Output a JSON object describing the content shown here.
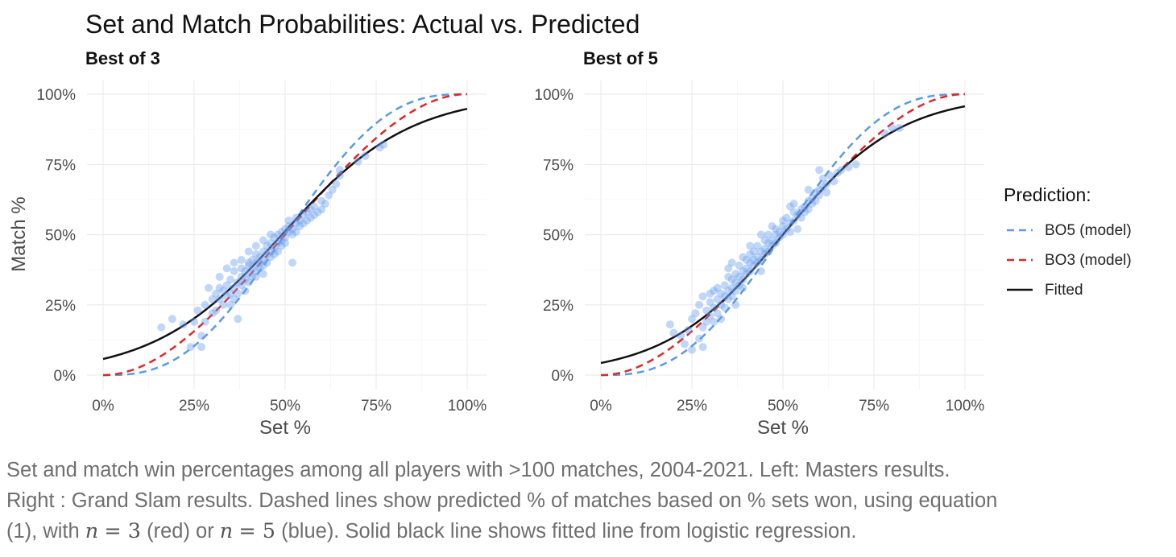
{
  "chart_data": {
    "type": "scatter",
    "title": "Set and Match Probabilities: Actual vs. Predicted",
    "xlabel": "Set %",
    "ylabel": "Match %",
    "xlim": [
      0,
      1
    ],
    "ylim": [
      0,
      1
    ],
    "x_ticks": [
      "0%",
      "25%",
      "50%",
      "75%",
      "100%"
    ],
    "y_ticks": [
      "0%",
      "25%",
      "50%",
      "75%",
      "100%"
    ],
    "grid": true,
    "legend": {
      "title": "Prediction:",
      "position": "right",
      "entries": [
        {
          "label": "BO5 (model)",
          "color": "#5b9ae6",
          "style": "dashed"
        },
        {
          "label": "BO3 (model)",
          "color": "#e0262a",
          "style": "dashed"
        },
        {
          "label": "Fitted",
          "color": "#111111",
          "style": "solid"
        }
      ]
    },
    "point_color": "#6b9ff0",
    "panels": [
      {
        "subtitle": "Best of 3",
        "fitted_logistic": {
          "intercept": -2.8,
          "slope": 5.7
        },
        "points": [
          [
            0.16,
            0.17
          ],
          [
            0.19,
            0.2
          ],
          [
            0.22,
            0.18
          ],
          [
            0.24,
            0.1
          ],
          [
            0.25,
            0.19
          ],
          [
            0.26,
            0.23
          ],
          [
            0.27,
            0.1
          ],
          [
            0.27,
            0.14
          ],
          [
            0.28,
            0.25
          ],
          [
            0.28,
            0.19
          ],
          [
            0.29,
            0.31
          ],
          [
            0.3,
            0.22
          ],
          [
            0.3,
            0.27
          ],
          [
            0.31,
            0.29
          ],
          [
            0.31,
            0.23
          ],
          [
            0.32,
            0.31
          ],
          [
            0.32,
            0.27
          ],
          [
            0.33,
            0.3
          ],
          [
            0.33,
            0.25
          ],
          [
            0.34,
            0.32
          ],
          [
            0.34,
            0.28
          ],
          [
            0.35,
            0.29
          ],
          [
            0.35,
            0.34
          ],
          [
            0.35,
            0.25
          ],
          [
            0.36,
            0.31
          ],
          [
            0.36,
            0.27
          ],
          [
            0.36,
            0.37
          ],
          [
            0.37,
            0.33
          ],
          [
            0.37,
            0.29
          ],
          [
            0.37,
            0.2
          ],
          [
            0.38,
            0.35
          ],
          [
            0.38,
            0.32
          ],
          [
            0.38,
            0.38
          ],
          [
            0.39,
            0.34
          ],
          [
            0.39,
            0.3
          ],
          [
            0.39,
            0.37
          ],
          [
            0.4,
            0.36
          ],
          [
            0.4,
            0.33
          ],
          [
            0.4,
            0.4
          ],
          [
            0.4,
            0.39
          ],
          [
            0.41,
            0.38
          ],
          [
            0.41,
            0.35
          ],
          [
            0.41,
            0.41
          ],
          [
            0.42,
            0.4
          ],
          [
            0.42,
            0.37
          ],
          [
            0.42,
            0.43
          ],
          [
            0.42,
            0.35
          ],
          [
            0.43,
            0.4
          ],
          [
            0.43,
            0.42
          ],
          [
            0.43,
            0.38
          ],
          [
            0.44,
            0.41
          ],
          [
            0.44,
            0.44
          ],
          [
            0.44,
            0.39
          ],
          [
            0.44,
            0.36
          ],
          [
            0.45,
            0.43
          ],
          [
            0.45,
            0.4
          ],
          [
            0.45,
            0.46
          ],
          [
            0.46,
            0.44
          ],
          [
            0.46,
            0.42
          ],
          [
            0.46,
            0.47
          ],
          [
            0.47,
            0.45
          ],
          [
            0.47,
            0.43
          ],
          [
            0.47,
            0.49
          ],
          [
            0.48,
            0.47
          ],
          [
            0.48,
            0.44
          ],
          [
            0.48,
            0.5
          ],
          [
            0.49,
            0.48
          ],
          [
            0.49,
            0.46
          ],
          [
            0.49,
            0.51
          ],
          [
            0.5,
            0.49
          ],
          [
            0.5,
            0.52
          ],
          [
            0.5,
            0.47
          ],
          [
            0.51,
            0.51
          ],
          [
            0.51,
            0.53
          ],
          [
            0.51,
            0.55
          ],
          [
            0.52,
            0.52
          ],
          [
            0.52,
            0.5
          ],
          [
            0.53,
            0.54
          ],
          [
            0.53,
            0.56
          ],
          [
            0.53,
            0.51
          ],
          [
            0.54,
            0.55
          ],
          [
            0.54,
            0.53
          ],
          [
            0.55,
            0.57
          ],
          [
            0.55,
            0.54
          ],
          [
            0.56,
            0.58
          ],
          [
            0.56,
            0.55
          ],
          [
            0.57,
            0.59
          ],
          [
            0.57,
            0.56
          ],
          [
            0.58,
            0.6
          ],
          [
            0.58,
            0.57
          ],
          [
            0.59,
            0.58
          ],
          [
            0.6,
            0.62
          ],
          [
            0.6,
            0.59
          ],
          [
            0.61,
            0.61
          ],
          [
            0.62,
            0.64
          ],
          [
            0.63,
            0.66
          ],
          [
            0.64,
            0.68
          ],
          [
            0.65,
            0.71
          ],
          [
            0.65,
            0.73
          ],
          [
            0.7,
            0.76
          ],
          [
            0.72,
            0.78
          ],
          [
            0.76,
            0.81
          ],
          [
            0.77,
            0.82
          ],
          [
            0.44,
            0.48
          ],
          [
            0.4,
            0.44
          ],
          [
            0.36,
            0.4
          ],
          [
            0.38,
            0.41
          ],
          [
            0.52,
            0.4
          ],
          [
            0.34,
            0.38
          ],
          [
            0.42,
            0.46
          ],
          [
            0.46,
            0.5
          ],
          [
            0.32,
            0.35
          ]
        ]
      },
      {
        "subtitle": "Best of 5",
        "fitted_logistic": {
          "intercept": -3.1,
          "slope": 6.2
        },
        "points": [
          [
            0.19,
            0.18
          ],
          [
            0.2,
            0.15
          ],
          [
            0.22,
            0.14
          ],
          [
            0.23,
            0.11
          ],
          [
            0.24,
            0.16
          ],
          [
            0.25,
            0.2
          ],
          [
            0.25,
            0.09
          ],
          [
            0.26,
            0.22
          ],
          [
            0.27,
            0.13
          ],
          [
            0.27,
            0.25
          ],
          [
            0.28,
            0.28
          ],
          [
            0.28,
            0.1
          ],
          [
            0.28,
            0.17
          ],
          [
            0.29,
            0.23
          ],
          [
            0.29,
            0.19
          ],
          [
            0.3,
            0.26
          ],
          [
            0.3,
            0.21
          ],
          [
            0.3,
            0.29
          ],
          [
            0.31,
            0.24
          ],
          [
            0.31,
            0.19
          ],
          [
            0.31,
            0.3
          ],
          [
            0.32,
            0.27
          ],
          [
            0.32,
            0.22
          ],
          [
            0.32,
            0.31
          ],
          [
            0.33,
            0.25
          ],
          [
            0.33,
            0.29
          ],
          [
            0.33,
            0.2
          ],
          [
            0.34,
            0.28
          ],
          [
            0.34,
            0.32
          ],
          [
            0.34,
            0.24
          ],
          [
            0.35,
            0.3
          ],
          [
            0.35,
            0.27
          ],
          [
            0.35,
            0.35
          ],
          [
            0.35,
            0.38
          ],
          [
            0.36,
            0.31
          ],
          [
            0.36,
            0.28
          ],
          [
            0.36,
            0.34
          ],
          [
            0.37,
            0.33
          ],
          [
            0.37,
            0.3
          ],
          [
            0.37,
            0.36
          ],
          [
            0.37,
            0.25
          ],
          [
            0.38,
            0.35
          ],
          [
            0.38,
            0.32
          ],
          [
            0.38,
            0.39
          ],
          [
            0.39,
            0.37
          ],
          [
            0.39,
            0.34
          ],
          [
            0.39,
            0.31
          ],
          [
            0.4,
            0.38
          ],
          [
            0.4,
            0.36
          ],
          [
            0.4,
            0.41
          ],
          [
            0.41,
            0.4
          ],
          [
            0.41,
            0.37
          ],
          [
            0.41,
            0.43
          ],
          [
            0.42,
            0.41
          ],
          [
            0.42,
            0.39
          ],
          [
            0.42,
            0.44
          ],
          [
            0.43,
            0.42
          ],
          [
            0.43,
            0.4
          ],
          [
            0.43,
            0.46
          ],
          [
            0.44,
            0.44
          ],
          [
            0.44,
            0.41
          ],
          [
            0.44,
            0.37
          ],
          [
            0.45,
            0.45
          ],
          [
            0.45,
            0.43
          ],
          [
            0.45,
            0.48
          ],
          [
            0.46,
            0.47
          ],
          [
            0.46,
            0.44
          ],
          [
            0.46,
            0.5
          ],
          [
            0.47,
            0.48
          ],
          [
            0.47,
            0.46
          ],
          [
            0.48,
            0.5
          ],
          [
            0.48,
            0.52
          ],
          [
            0.48,
            0.47
          ],
          [
            0.49,
            0.51
          ],
          [
            0.49,
            0.49
          ],
          [
            0.5,
            0.53
          ],
          [
            0.5,
            0.5
          ],
          [
            0.5,
            0.55
          ],
          [
            0.51,
            0.52
          ],
          [
            0.51,
            0.56
          ],
          [
            0.52,
            0.54
          ],
          [
            0.52,
            0.51
          ],
          [
            0.52,
            0.6
          ],
          [
            0.53,
            0.55
          ],
          [
            0.53,
            0.58
          ],
          [
            0.54,
            0.57
          ],
          [
            0.54,
            0.52
          ],
          [
            0.55,
            0.59
          ],
          [
            0.55,
            0.56
          ],
          [
            0.56,
            0.6
          ],
          [
            0.56,
            0.58
          ],
          [
            0.57,
            0.62
          ],
          [
            0.57,
            0.59
          ],
          [
            0.58,
            0.63
          ],
          [
            0.58,
            0.61
          ],
          [
            0.59,
            0.65
          ],
          [
            0.59,
            0.62
          ],
          [
            0.6,
            0.66
          ],
          [
            0.6,
            0.64
          ],
          [
            0.6,
            0.73
          ],
          [
            0.61,
            0.67
          ],
          [
            0.61,
            0.7
          ],
          [
            0.62,
            0.68
          ],
          [
            0.62,
            0.65
          ],
          [
            0.63,
            0.71
          ],
          [
            0.64,
            0.69
          ],
          [
            0.65,
            0.72
          ],
          [
            0.66,
            0.73
          ],
          [
            0.68,
            0.74
          ],
          [
            0.7,
            0.75
          ],
          [
            0.78,
            0.86
          ],
          [
            0.8,
            0.88
          ],
          [
            0.82,
            0.88
          ],
          [
            0.36,
            0.4
          ],
          [
            0.41,
            0.46
          ],
          [
            0.44,
            0.5
          ],
          [
            0.39,
            0.42
          ],
          [
            0.47,
            0.53
          ],
          [
            0.53,
            0.61
          ],
          [
            0.57,
            0.66
          ]
        ]
      }
    ]
  },
  "caption": {
    "line1": "Set and match win percentages among all players with >100 matches, 2004-2021. Left: Masters results.",
    "line2": "Right : Grand Slam results. Dashed lines show predicted % of matches based on % sets won, using equation",
    "line3_a": "(1), with ",
    "n_var": "n",
    "eq_3": "= 3",
    "line3_b": " (red) or ",
    "eq_5": "= 5",
    "line3_c": " (blue). Solid black line shows fitted line from logistic regression."
  }
}
